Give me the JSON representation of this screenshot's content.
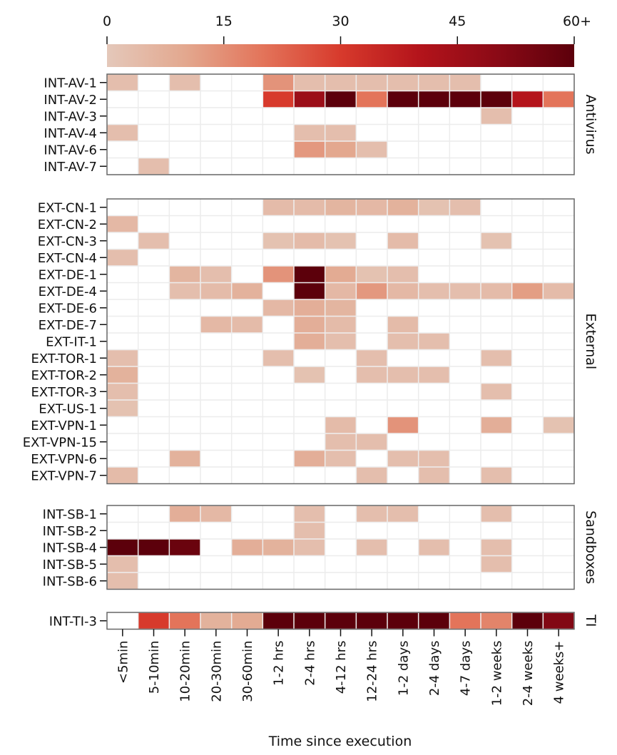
{
  "chart_data": {
    "type": "heatmap",
    "title": "",
    "xlabel": "Time since execution",
    "ylabel": "",
    "colorbar": {
      "ticks": [
        "0",
        "15",
        "30",
        "45",
        "60+"
      ],
      "tick_values": [
        0,
        15,
        30,
        45,
        60
      ],
      "range": [
        0,
        60
      ],
      "colormap": "Reds",
      "stops": [
        "#e4c8ba",
        "#e3a88f",
        "#e3745a",
        "#d73a2c",
        "#b4141b",
        "#8b0a16",
        "#5c000b"
      ],
      "placement": "top"
    },
    "categories": [
      "<5min",
      "5-10min",
      "10-20min",
      "20-30min",
      "30-60min",
      "1-2 hrs",
      "2-4 hrs",
      "4-12 hrs",
      "12-24 hrs",
      "1-2 days",
      "2-4 days",
      "4-7 days",
      "1-2 weeks",
      "2-4 weeks",
      "4 weeks+"
    ],
    "groups": [
      {
        "name": "Antivirus",
        "rows": [
          {
            "label": "INT-AV-1",
            "values": [
              3,
              0,
              3,
              0,
              0,
              14,
              3,
              3,
              3,
              3,
              3,
              3,
              0,
              0,
              0
            ]
          },
          {
            "label": "INT-AV-2",
            "values": [
              0,
              0,
              0,
              0,
              0,
              30,
              46,
              60,
              20,
              60,
              60,
              60,
              60,
              40,
              20
            ]
          },
          {
            "label": "INT-AV-3",
            "values": [
              0,
              0,
              0,
              0,
              0,
              0,
              0,
              0,
              0,
              0,
              0,
              0,
              3,
              0,
              0
            ]
          },
          {
            "label": "INT-AV-4",
            "values": [
              3,
              0,
              0,
              0,
              0,
              0,
              3,
              3,
              0,
              0,
              0,
              0,
              0,
              0,
              0
            ]
          },
          {
            "label": "INT-AV-6",
            "values": [
              0,
              0,
              0,
              0,
              0,
              0,
              13,
              10,
              3,
              0,
              0,
              0,
              0,
              0,
              0
            ]
          },
          {
            "label": "INT-AV-7",
            "values": [
              0,
              3,
              0,
              0,
              0,
              0,
              0,
              0,
              0,
              0,
              0,
              0,
              0,
              0,
              0
            ]
          }
        ]
      },
      {
        "name": "External",
        "rows": [
          {
            "label": "EXT-CN-1",
            "values": [
              0,
              0,
              0,
              0,
              0,
              4,
              4,
              6,
              5,
              7,
              2,
              3,
              0,
              0,
              0
            ]
          },
          {
            "label": "EXT-CN-2",
            "values": [
              5,
              0,
              0,
              0,
              0,
              0,
              0,
              0,
              0,
              0,
              0,
              0,
              0,
              0,
              0
            ]
          },
          {
            "label": "EXT-CN-3",
            "values": [
              0,
              3,
              0,
              0,
              0,
              2,
              4,
              2,
              0,
              4,
              0,
              0,
              2,
              0,
              0
            ]
          },
          {
            "label": "EXT-CN-4",
            "values": [
              3,
              0,
              0,
              0,
              0,
              0,
              0,
              0,
              0,
              0,
              0,
              0,
              0,
              0,
              0
            ]
          },
          {
            "label": "EXT-DE-1",
            "values": [
              0,
              0,
              6,
              3,
              0,
              14,
              60,
              9,
              2,
              3,
              0,
              0,
              0,
              0,
              0
            ]
          },
          {
            "label": "EXT-DE-4",
            "values": [
              0,
              0,
              3,
              4,
              7,
              0,
              60,
              5,
              13,
              5,
              3,
              3,
              4,
              12,
              4
            ]
          },
          {
            "label": "EXT-DE-6",
            "values": [
              0,
              0,
              0,
              0,
              0,
              5,
              8,
              6,
              0,
              0,
              0,
              0,
              0,
              0,
              0
            ]
          },
          {
            "label": "EXT-DE-7",
            "values": [
              0,
              0,
              0,
              5,
              4,
              0,
              8,
              4,
              0,
              4,
              0,
              0,
              0,
              0,
              0
            ]
          },
          {
            "label": "EXT-IT-1",
            "values": [
              0,
              0,
              0,
              0,
              0,
              0,
              8,
              3,
              0,
              3,
              3,
              0,
              0,
              0,
              0
            ]
          },
          {
            "label": "EXT-TOR-1",
            "values": [
              3,
              0,
              0,
              0,
              0,
              3,
              0,
              0,
              3,
              0,
              0,
              0,
              3,
              0,
              0
            ]
          },
          {
            "label": "EXT-TOR-2",
            "values": [
              7,
              0,
              0,
              0,
              0,
              0,
              2,
              0,
              3,
              3,
              3,
              0,
              0,
              0,
              0
            ]
          },
          {
            "label": "EXT-TOR-3",
            "values": [
              3,
              0,
              0,
              0,
              0,
              0,
              0,
              0,
              0,
              0,
              0,
              0,
              3,
              0,
              0
            ]
          },
          {
            "label": "EXT-US-1",
            "values": [
              2,
              0,
              0,
              0,
              0,
              0,
              0,
              0,
              0,
              0,
              0,
              0,
              0,
              0,
              0
            ]
          },
          {
            "label": "EXT-VPN-1",
            "values": [
              0,
              0,
              0,
              0,
              0,
              0,
              0,
              4,
              0,
              14,
              0,
              0,
              8,
              0,
              2
            ]
          },
          {
            "label": "EXT-VPN-15",
            "values": [
              0,
              0,
              0,
              0,
              0,
              0,
              0,
              3,
              3,
              0,
              0,
              0,
              0,
              0,
              0
            ]
          },
          {
            "label": "EXT-VPN-6",
            "values": [
              0,
              0,
              7,
              0,
              0,
              0,
              8,
              3,
              0,
              3,
              3,
              0,
              0,
              0,
              0
            ]
          },
          {
            "label": "EXT-VPN-7",
            "values": [
              4,
              0,
              0,
              0,
              0,
              0,
              0,
              0,
              3,
              0,
              3,
              0,
              3,
              0,
              0
            ]
          }
        ]
      },
      {
        "name": "Sandboxes",
        "rows": [
          {
            "label": "INT-SB-1",
            "values": [
              0,
              0,
              8,
              5,
              0,
              0,
              3,
              0,
              3,
              3,
              0,
              0,
              3,
              0,
              0
            ]
          },
          {
            "label": "INT-SB-2",
            "values": [
              0,
              0,
              0,
              0,
              0,
              0,
              3,
              0,
              0,
              0,
              0,
              0,
              0,
              0,
              0
            ]
          },
          {
            "label": "INT-SB-4",
            "values": [
              60,
              60,
              57,
              0,
              8,
              7,
              3,
              0,
              3,
              0,
              3,
              0,
              3,
              0,
              0
            ]
          },
          {
            "label": "INT-SB-5",
            "values": [
              3,
              0,
              0,
              0,
              0,
              0,
              0,
              0,
              0,
              0,
              0,
              0,
              3,
              0,
              0
            ]
          },
          {
            "label": "INT-SB-6",
            "values": [
              3,
              0,
              0,
              0,
              0,
              0,
              0,
              0,
              0,
              0,
              0,
              0,
              0,
              0,
              0
            ]
          }
        ]
      },
      {
        "name": "TI",
        "rows": [
          {
            "label": "INT-TI-3",
            "values": [
              0,
              30,
              20,
              7,
              9,
              60,
              60,
              60,
              60,
              60,
              60,
              20,
              17,
              60,
              52
            ]
          }
        ]
      }
    ],
    "grid": true,
    "legend": "colorbar top"
  }
}
